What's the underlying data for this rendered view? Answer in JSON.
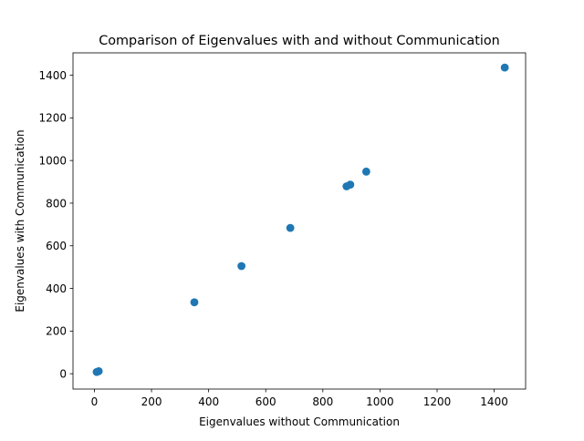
{
  "chart_data": {
    "type": "scatter",
    "title": "Comparison of Eigenvalues with and without Communication",
    "xlabel": "Eigenvalues without Communication",
    "ylabel": "Eigenvalues with Communication",
    "xlim": [
      -75,
      1510
    ],
    "ylim": [
      -72,
      1505
    ],
    "xticks": [
      0,
      200,
      400,
      600,
      800,
      1000,
      1200,
      1400
    ],
    "yticks": [
      0,
      200,
      400,
      600,
      800,
      1000,
      1200,
      1400
    ],
    "grid": false,
    "legend": "none",
    "marker_color": "#1f77b4",
    "series": [
      {
        "x": [
          1437,
          952,
          896,
          883,
          686,
          515,
          350,
          15,
          8
        ],
        "y": [
          1436,
          948,
          887,
          879,
          684,
          505,
          335,
          12,
          8
        ]
      }
    ]
  }
}
